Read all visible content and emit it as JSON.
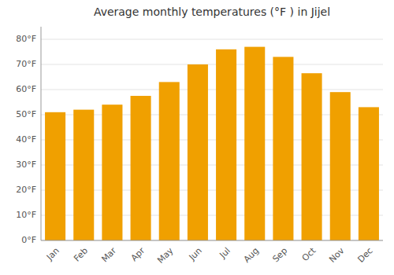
{
  "chart_data": {
    "type": "bar",
    "title": "Average monthly temperatures (°F ) in Jijel",
    "categories": [
      "Jan",
      "Feb",
      "Mar",
      "Apr",
      "May",
      "Jun",
      "Jul",
      "Aug",
      "Sep",
      "Oct",
      "Nov",
      "Dec"
    ],
    "values": [
      51,
      52,
      54,
      57.5,
      63,
      70,
      76,
      77,
      73,
      66.5,
      59,
      53
    ],
    "color": "#F0A000",
    "ylim": [
      0,
      85
    ],
    "yticks": [
      {
        "value": 0,
        "label": "0°F"
      },
      {
        "value": 10,
        "label": "10°F"
      },
      {
        "value": 20,
        "label": "20°F"
      },
      {
        "value": 30,
        "label": "30°F"
      },
      {
        "value": 40,
        "label": "40°F"
      },
      {
        "value": 50,
        "label": "50°F"
      },
      {
        "value": 60,
        "label": "60°F"
      },
      {
        "value": 70,
        "label": "70°F"
      },
      {
        "value": 80,
        "label": "80°F"
      }
    ],
    "grid": true
  }
}
